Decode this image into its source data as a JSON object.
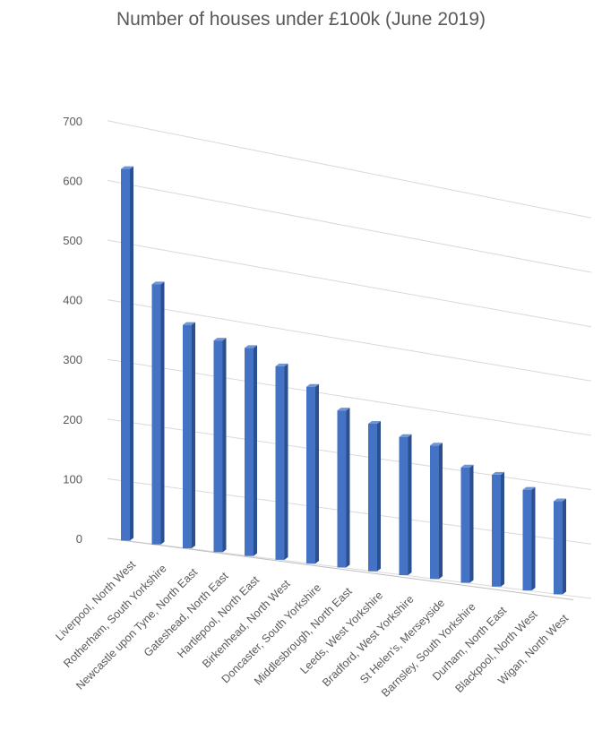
{
  "chart_data": {
    "type": "bar",
    "title": "Number of houses under £100k (June 2019)",
    "xlabel": "",
    "ylabel": "",
    "ylim": [
      0,
      700
    ],
    "yticks": [
      0,
      100,
      200,
      300,
      400,
      500,
      600,
      700
    ],
    "grid": true,
    "legend": "none",
    "perspective": "3d",
    "bar_color": "#4472C4",
    "categories": [
      "Liverpool, North West",
      "Rotherham, South Yorkshire",
      "Newcastle upon Tyne, North East",
      "Gateshead, North East",
      "Hartlepool, North East",
      "Birkenhead, North West",
      "Doncaster, South Yorkshire",
      "Middlesbrough, North East",
      "Leeds, West Yorkshire",
      "Bradford, West Yorkshire",
      "St Helen's, Merseyside",
      "Barnsley, South Yorkshire",
      "Durham, North East",
      "Blackpool, North West",
      "Wigan, North West"
    ],
    "values": [
      625,
      440,
      380,
      362,
      358,
      335,
      308,
      275,
      260,
      245,
      238,
      207,
      202,
      183,
      170
    ]
  }
}
